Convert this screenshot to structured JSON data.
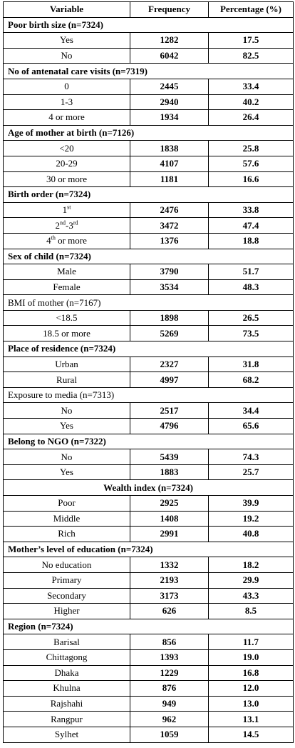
{
  "headers": [
    "Variable",
    "Frequency",
    "Percentage (%)"
  ],
  "sections": [
    {
      "title": "Poor birth size (n=7324)",
      "style": "bold-left",
      "rows": [
        {
          "cat": "Yes",
          "freq": "1282",
          "pct": "17.5"
        },
        {
          "cat": "No",
          "freq": "6042",
          "pct": "82.5"
        }
      ]
    },
    {
      "title": "No of antenatal care visits (n=7319)",
      "style": "bold-left",
      "rows": [
        {
          "cat": "0",
          "freq": "2445",
          "pct": "33.4"
        },
        {
          "cat": "1-3",
          "freq": "2940",
          "pct": "40.2"
        },
        {
          "cat": "4 or more",
          "freq": "1934",
          "pct": "26.4"
        }
      ]
    },
    {
      "title": "Age of mother at birth (n=7126)",
      "style": "bold-left",
      "rows": [
        {
          "cat": "<20",
          "freq": "1838",
          "pct": "25.8"
        },
        {
          "cat": "20-29",
          "freq": "4107",
          "pct": "57.6"
        },
        {
          "cat": "30 or more",
          "freq": "1181",
          "pct": "16.6"
        }
      ]
    },
    {
      "title": "Birth order (n=7324)",
      "style": "bold-left",
      "rows": [
        {
          "cat_parts": [
            "1",
            "st",
            ""
          ],
          "freq": "2476",
          "pct": "33.8"
        },
        {
          "cat_parts": [
            "2",
            "nd",
            "-3",
            "rd"
          ],
          "freq": "3472",
          "pct": "47.4"
        },
        {
          "cat_parts": [
            "4",
            "th",
            " or more"
          ],
          "freq": "1376",
          "pct": "18.8"
        }
      ]
    },
    {
      "title": "Sex of child (n=7324)",
      "style": "bold-left",
      "rows": [
        {
          "cat": "Male",
          "freq": "3790",
          "pct": "51.7"
        },
        {
          "cat": "Female",
          "freq": "3534",
          "pct": "48.3"
        }
      ]
    },
    {
      "title": "BMI of mother (n=7167)",
      "style": "plain-left",
      "rows": [
        {
          "cat": "<18.5",
          "freq": "1898",
          "pct": "26.5"
        },
        {
          "cat": "18.5 or more",
          "freq": "5269",
          "pct": "73.5"
        }
      ]
    },
    {
      "title": "Place of residence (n=7324)",
      "style": "bold-left",
      "rows": [
        {
          "cat": "Urban",
          "freq": "2327",
          "pct": "31.8"
        },
        {
          "cat": "Rural",
          "freq": "4997",
          "pct": "68.2"
        }
      ]
    },
    {
      "title": "Exposure to media (n=7313)",
      "style": "plain-left",
      "rows": [
        {
          "cat": "No",
          "freq": "2517",
          "pct": "34.4"
        },
        {
          "cat": "Yes",
          "freq": "4796",
          "pct": "65.6"
        }
      ]
    },
    {
      "title": "Belong to NGO (n=7322)",
      "style": "bold-left",
      "rows": [
        {
          "cat": "No",
          "freq": "5439",
          "pct": "74.3"
        },
        {
          "cat": "Yes",
          "freq": "1883",
          "pct": "25.7"
        }
      ]
    },
    {
      "title": "Wealth index (n=7324)",
      "style": "bold-center",
      "rows": [
        {
          "cat": "Poor",
          "freq": "2925",
          "pct": "39.9"
        },
        {
          "cat": "Middle",
          "freq": "1408",
          "pct": "19.2"
        },
        {
          "cat": "Rich",
          "freq": "2991",
          "pct": "40.8"
        }
      ]
    },
    {
      "title": "Mother’s level of education (n=7324)",
      "style": "bold-left",
      "rows": [
        {
          "cat": "No education",
          "freq": "1332",
          "pct": "18.2"
        },
        {
          "cat": "Primary",
          "freq": "2193",
          "pct": "29.9"
        },
        {
          "cat": "Secondary",
          "freq": "3173",
          "pct": "43.3"
        },
        {
          "cat": "Higher",
          "freq": "626",
          "pct": "8.5"
        }
      ]
    },
    {
      "title": "Region (n=7324)",
      "style": "bold-left",
      "rows": [
        {
          "cat": "Barisal",
          "freq": "856",
          "pct": "11.7"
        },
        {
          "cat": "Chittagong",
          "freq": "1393",
          "pct": "19.0"
        },
        {
          "cat": "Dhaka",
          "freq": "1229",
          "pct": "16.8"
        },
        {
          "cat": "Khulna",
          "freq": "876",
          "pct": "12.0"
        },
        {
          "cat": "Rajshahi",
          "freq": "949",
          "pct": "13.0"
        },
        {
          "cat": "Rangpur",
          "freq": "962",
          "pct": "13.1"
        },
        {
          "cat": "Sylhet",
          "freq": "1059",
          "pct": "14.5"
        }
      ]
    }
  ]
}
